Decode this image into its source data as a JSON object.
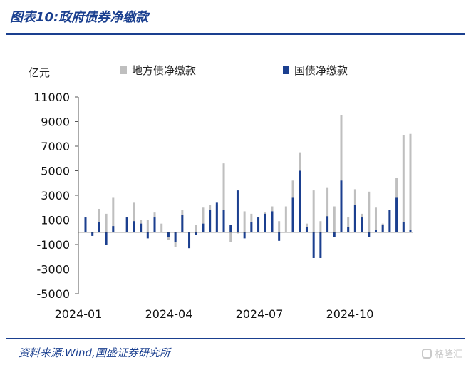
{
  "header": {
    "title": "图表10:政府债券净缴款"
  },
  "footer": {
    "source": "资料来源:Wind,国盛证券研究所"
  },
  "watermark": {
    "text": "格隆汇"
  },
  "colors": {
    "brand": "#1a3f8f",
    "local": "#bfbfbf",
    "national": "#1b3f8f"
  },
  "chart_data": {
    "type": "bar",
    "stacked": false,
    "unit_label": "亿元",
    "ylim": [
      -5000,
      11000
    ],
    "yticks": [
      "11000",
      "9000",
      "7000",
      "5000",
      "3000",
      "1000",
      "-1000",
      "-3000",
      "-5000"
    ],
    "xticks": [
      "2024-01",
      "2024-04",
      "2024-07",
      "2024-10"
    ],
    "legend": "top",
    "series": [
      {
        "name": "地方债净缴款",
        "values": [
          1200,
          -100,
          1900,
          1500,
          2800,
          0,
          1200,
          2400,
          1000,
          1000,
          1600,
          700,
          -600,
          -1200,
          1800,
          0,
          600,
          2000,
          2200,
          2200,
          5600,
          -800,
          -100,
          1700,
          1500,
          1200,
          1600,
          2100,
          900,
          2100,
          4200,
          6500,
          700,
          3400,
          900,
          3600,
          2100,
          9500,
          1200,
          3500,
          1500,
          3300,
          2000,
          700,
          1800,
          4400,
          7900,
          8000
        ]
      },
      {
        "name": "国债净缴款",
        "values": [
          1200,
          -300,
          800,
          -1000,
          500,
          0,
          1200,
          900,
          700,
          -500,
          1200,
          0,
          -400,
          -800,
          1400,
          -1300,
          -200,
          700,
          1800,
          2400,
          1800,
          600,
          3400,
          -500,
          800,
          1200,
          1500,
          1700,
          -700,
          0,
          2800,
          5000,
          400,
          -2100,
          -2100,
          1300,
          -400,
          4200,
          400,
          2200,
          1200,
          -400,
          200,
          600,
          1800,
          2800,
          800,
          200
        ]
      }
    ]
  }
}
